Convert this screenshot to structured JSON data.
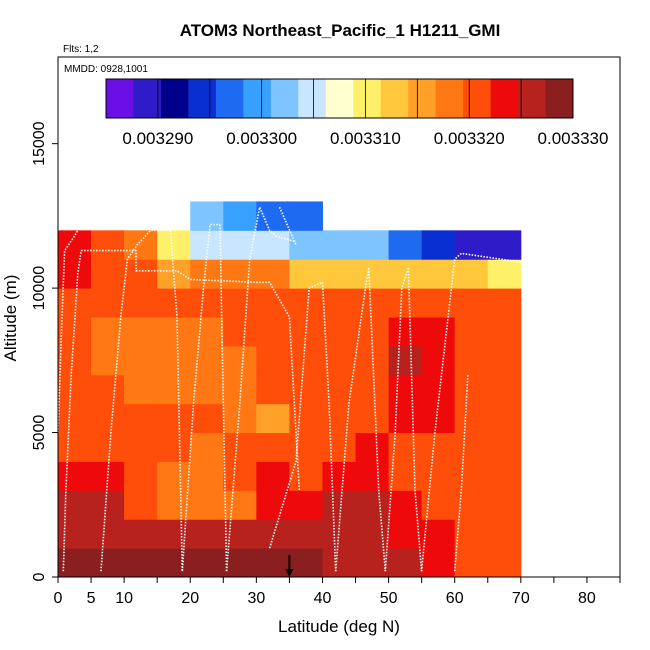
{
  "header": {
    "title": "ATOM3 Northeast_Pacific_1 H1211_GMI",
    "flights": "Flts: 1,2",
    "dates": "MMDD: 0928,1001"
  },
  "colors": {
    "palette": [
      "#6a0fe6",
      "#2f1cc8",
      "#00008b",
      "#0a2fd0",
      "#1e6af0",
      "#38a0ff",
      "#7ec4ff",
      "#c8e6ff",
      "#ffffd0",
      "#fff06a",
      "#ffc83c",
      "#ffa028",
      "#ff7814",
      "#ff4e0a",
      "#ee0a0a",
      "#b8221e",
      "#8b1e1e"
    ],
    "flight_track": "#ffffff",
    "marker": "#000000"
  },
  "chart_data": {
    "type": "heatmap",
    "title": "ATOM3 Northeast_Pacific_1 H1211_GMI",
    "xlabel": "Latitude (deg N)",
    "ylabel": "Altitude (m)",
    "xlim": [
      0,
      85
    ],
    "ylim": [
      0,
      18000
    ],
    "x_ticks": [
      {
        "v": 0,
        "label": "0"
      },
      {
        "v": 5,
        "label": "5"
      },
      {
        "v": 10,
        "label": "10"
      },
      {
        "v": 20,
        "label": "20"
      },
      {
        "v": 30,
        "label": "30"
      },
      {
        "v": 40,
        "label": "40"
      },
      {
        "v": 50,
        "label": "50"
      },
      {
        "v": 60,
        "label": "60"
      },
      {
        "v": 70,
        "label": "70"
      },
      {
        "v": 80,
        "label": "80"
      }
    ],
    "x_minor": [
      15,
      25,
      35,
      45,
      55,
      65,
      75,
      85
    ],
    "y_ticks": [
      {
        "v": 0,
        "label": "0"
      },
      {
        "v": 5000,
        "label": "5000"
      },
      {
        "v": 10000,
        "label": "10000"
      },
      {
        "v": 15000,
        "label": "15000"
      }
    ],
    "colorbar": {
      "range": [
        0.003285,
        0.00333
      ],
      "ticks": [
        {
          "v": 0.00329,
          "label": "0.003290"
        },
        {
          "v": 0.0033,
          "label": "0.003300"
        },
        {
          "v": 0.00331,
          "label": "0.003310"
        },
        {
          "v": 0.00332,
          "label": "0.003320"
        },
        {
          "v": 0.00333,
          "label": "0.003330"
        }
      ]
    },
    "altitude_bins": [
      0,
      1000,
      2000,
      3000,
      4000,
      5000,
      6000,
      7000,
      8000,
      9000,
      10000,
      11000,
      12000,
      13000
    ],
    "latitude_bins": [
      0,
      5,
      10,
      15,
      20,
      25,
      30,
      35,
      40,
      45,
      50,
      55,
      60,
      65,
      70
    ],
    "values": [
      [
        0.003328,
        0.003328,
        0.003328,
        0.003328,
        0.003328,
        0.003328,
        0.003328,
        0.003328,
        0.003327,
        0.003326,
        0.003325,
        0.003324,
        0.003322,
        0.003321
      ],
      [
        0.003326,
        0.003326,
        0.003327,
        0.003327,
        0.003327,
        0.003325,
        0.003326,
        0.003325,
        0.003326,
        0.003326,
        0.003324,
        0.003323,
        0.003321,
        0.003321
      ],
      [
        0.003325,
        0.003325,
        0.003321,
        0.003318,
        0.003318,
        0.003319,
        0.003324,
        0.003323,
        0.003325,
        0.003325,
        0.003323,
        0.003322,
        0.00332,
        0.00332
      ],
      [
        0.003324,
        0.003324,
        0.00332,
        0.003319,
        0.003319,
        0.003321,
        0.003323,
        0.003322,
        0.003324,
        0.003324,
        0.003322,
        0.003321,
        0.00332,
        0.00332
      ],
      [
        0.003322,
        0.003322,
        0.003321,
        0.00332,
        0.003319,
        0.00332,
        0.003321,
        0.003321,
        0.003322,
        0.003323,
        0.003322,
        0.003322,
        0.003321,
        0.003321
      ],
      [
        0.003321,
        0.003321,
        0.00332,
        0.00332,
        0.00332,
        0.003319,
        0.003315,
        0.00332,
        0.003321,
        0.003322,
        0.003323,
        0.003324,
        0.003322,
        0.003321
      ],
      [
        0.00332,
        0.00332,
        0.003319,
        0.003318,
        0.003318,
        0.003319,
        0.00332,
        0.00332,
        0.003321,
        0.003322,
        0.003324,
        0.003324,
        0.003322,
        0.003321
      ],
      [
        0.00332,
        0.003318,
        0.003317,
        0.003317,
        0.003318,
        0.003319,
        0.00332,
        0.00332,
        0.003321,
        0.003322,
        0.003325,
        0.003324,
        0.003322,
        0.003321
      ],
      [
        0.003321,
        0.003319,
        0.003318,
        0.003318,
        0.003319,
        0.00332,
        0.00332,
        0.00332,
        0.003321,
        0.003322,
        0.003324,
        0.003323,
        0.003322,
        0.003321
      ],
      [
        0.003322,
        0.003321,
        0.00332,
        0.00332,
        0.00332,
        0.00332,
        0.003321,
        0.00332,
        0.003321,
        0.003321,
        0.003321,
        0.003321,
        0.003321,
        0.00332
      ],
      [
        0.003323,
        0.003321,
        0.00332,
        0.003316,
        0.003317,
        0.003318,
        0.003318,
        0.003313,
        0.003314,
        0.003314,
        0.003314,
        0.003314,
        0.003313,
        0.003311
      ],
      [
        0.003323,
        0.00332,
        0.003318,
        0.003311,
        0.003305,
        0.003305,
        0.003304,
        0.003303,
        0.003302,
        0.003302,
        0.003298,
        0.003294,
        0.00329,
        0.00329
      ],
      [
        null,
        null,
        null,
        null,
        0.003302,
        0.0033,
        0.003298,
        0.003297,
        null,
        null,
        null,
        null,
        null,
        null
      ]
    ],
    "flight_tracks": [
      [
        [
          0.0,
          5000
        ],
        [
          0.6,
          9000
        ],
        [
          1.0,
          11300
        ],
        [
          2.5,
          11800
        ],
        [
          3.0,
          12000
        ]
      ],
      [
        [
          0.8,
          200
        ],
        [
          1.2,
          3000
        ],
        [
          2.0,
          7000
        ],
        [
          3.0,
          10500
        ],
        [
          3.5,
          11300
        ]
      ],
      [
        [
          3.5,
          11300
        ],
        [
          10.0,
          11300
        ],
        [
          11.8,
          11300
        ],
        [
          11.8,
          10600
        ],
        [
          18.0,
          10600
        ],
        [
          20.0,
          10300
        ],
        [
          30.0,
          10200
        ],
        [
          32.0,
          10200
        ],
        [
          35.0,
          9000
        ],
        [
          36.5,
          3000
        ]
      ],
      [
        [
          6.5,
          200
        ],
        [
          8.0,
          5000
        ],
        [
          9.5,
          9000
        ],
        [
          10.5,
          11000
        ],
        [
          12.0,
          11500
        ],
        [
          14.0,
          12000
        ],
        [
          15.3,
          12000
        ],
        [
          17.0,
          12000
        ]
      ],
      [
        [
          17.0,
          12000
        ],
        [
          18.0,
          9000
        ],
        [
          18.8,
          200
        ]
      ],
      [
        [
          18.8,
          200
        ],
        [
          20.5,
          6000
        ],
        [
          22.0,
          10000
        ],
        [
          23.0,
          12200
        ],
        [
          24.5,
          12200
        ]
      ],
      [
        [
          24.5,
          12200
        ],
        [
          25.0,
          6000
        ],
        [
          25.5,
          200
        ]
      ],
      [
        [
          25.5,
          200
        ],
        [
          27.5,
          6000
        ],
        [
          29.0,
          11000
        ],
        [
          30.5,
          12800
        ],
        [
          32.0,
          12000
        ],
        [
          33.0,
          11800
        ],
        [
          36.0,
          11600
        ]
      ],
      [
        [
          33.5,
          12800
        ],
        [
          36.0,
          11500
        ]
      ],
      [
        [
          32.0,
          1000
        ],
        [
          36.0,
          4000
        ],
        [
          38.0,
          10000
        ],
        [
          40.0,
          10200
        ]
      ],
      [
        [
          40.0,
          10200
        ],
        [
          41.0,
          6000
        ],
        [
          42.0,
          200
        ]
      ],
      [
        [
          42.0,
          200
        ],
        [
          44.0,
          6000
        ],
        [
          46.5,
          10000
        ],
        [
          47.0,
          10700
        ]
      ],
      [
        [
          47.0,
          10700
        ],
        [
          48.5,
          3000
        ],
        [
          49.5,
          200
        ]
      ],
      [
        [
          49.5,
          200
        ],
        [
          51.0,
          5000
        ],
        [
          52.0,
          10000
        ],
        [
          53.0,
          10700
        ]
      ],
      [
        [
          53.0,
          10700
        ],
        [
          54.0,
          3000
        ],
        [
          55.0,
          200
        ]
      ],
      [
        [
          55.0,
          200
        ],
        [
          57.0,
          5000
        ],
        [
          58.5,
          8000
        ],
        [
          60.0,
          11000
        ],
        [
          61.0,
          11200
        ],
        [
          70.0,
          10900
        ],
        [
          71.0,
          10800
        ]
      ],
      [
        [
          71.0,
          10800
        ],
        [
          72.0,
          9000
        ],
        [
          72.5,
          200
        ]
      ],
      [
        [
          60.0,
          200
        ],
        [
          61.0,
          3000
        ],
        [
          62.0,
          7000
        ]
      ]
    ],
    "marker": {
      "lat": 35,
      "alt": 0
    }
  }
}
